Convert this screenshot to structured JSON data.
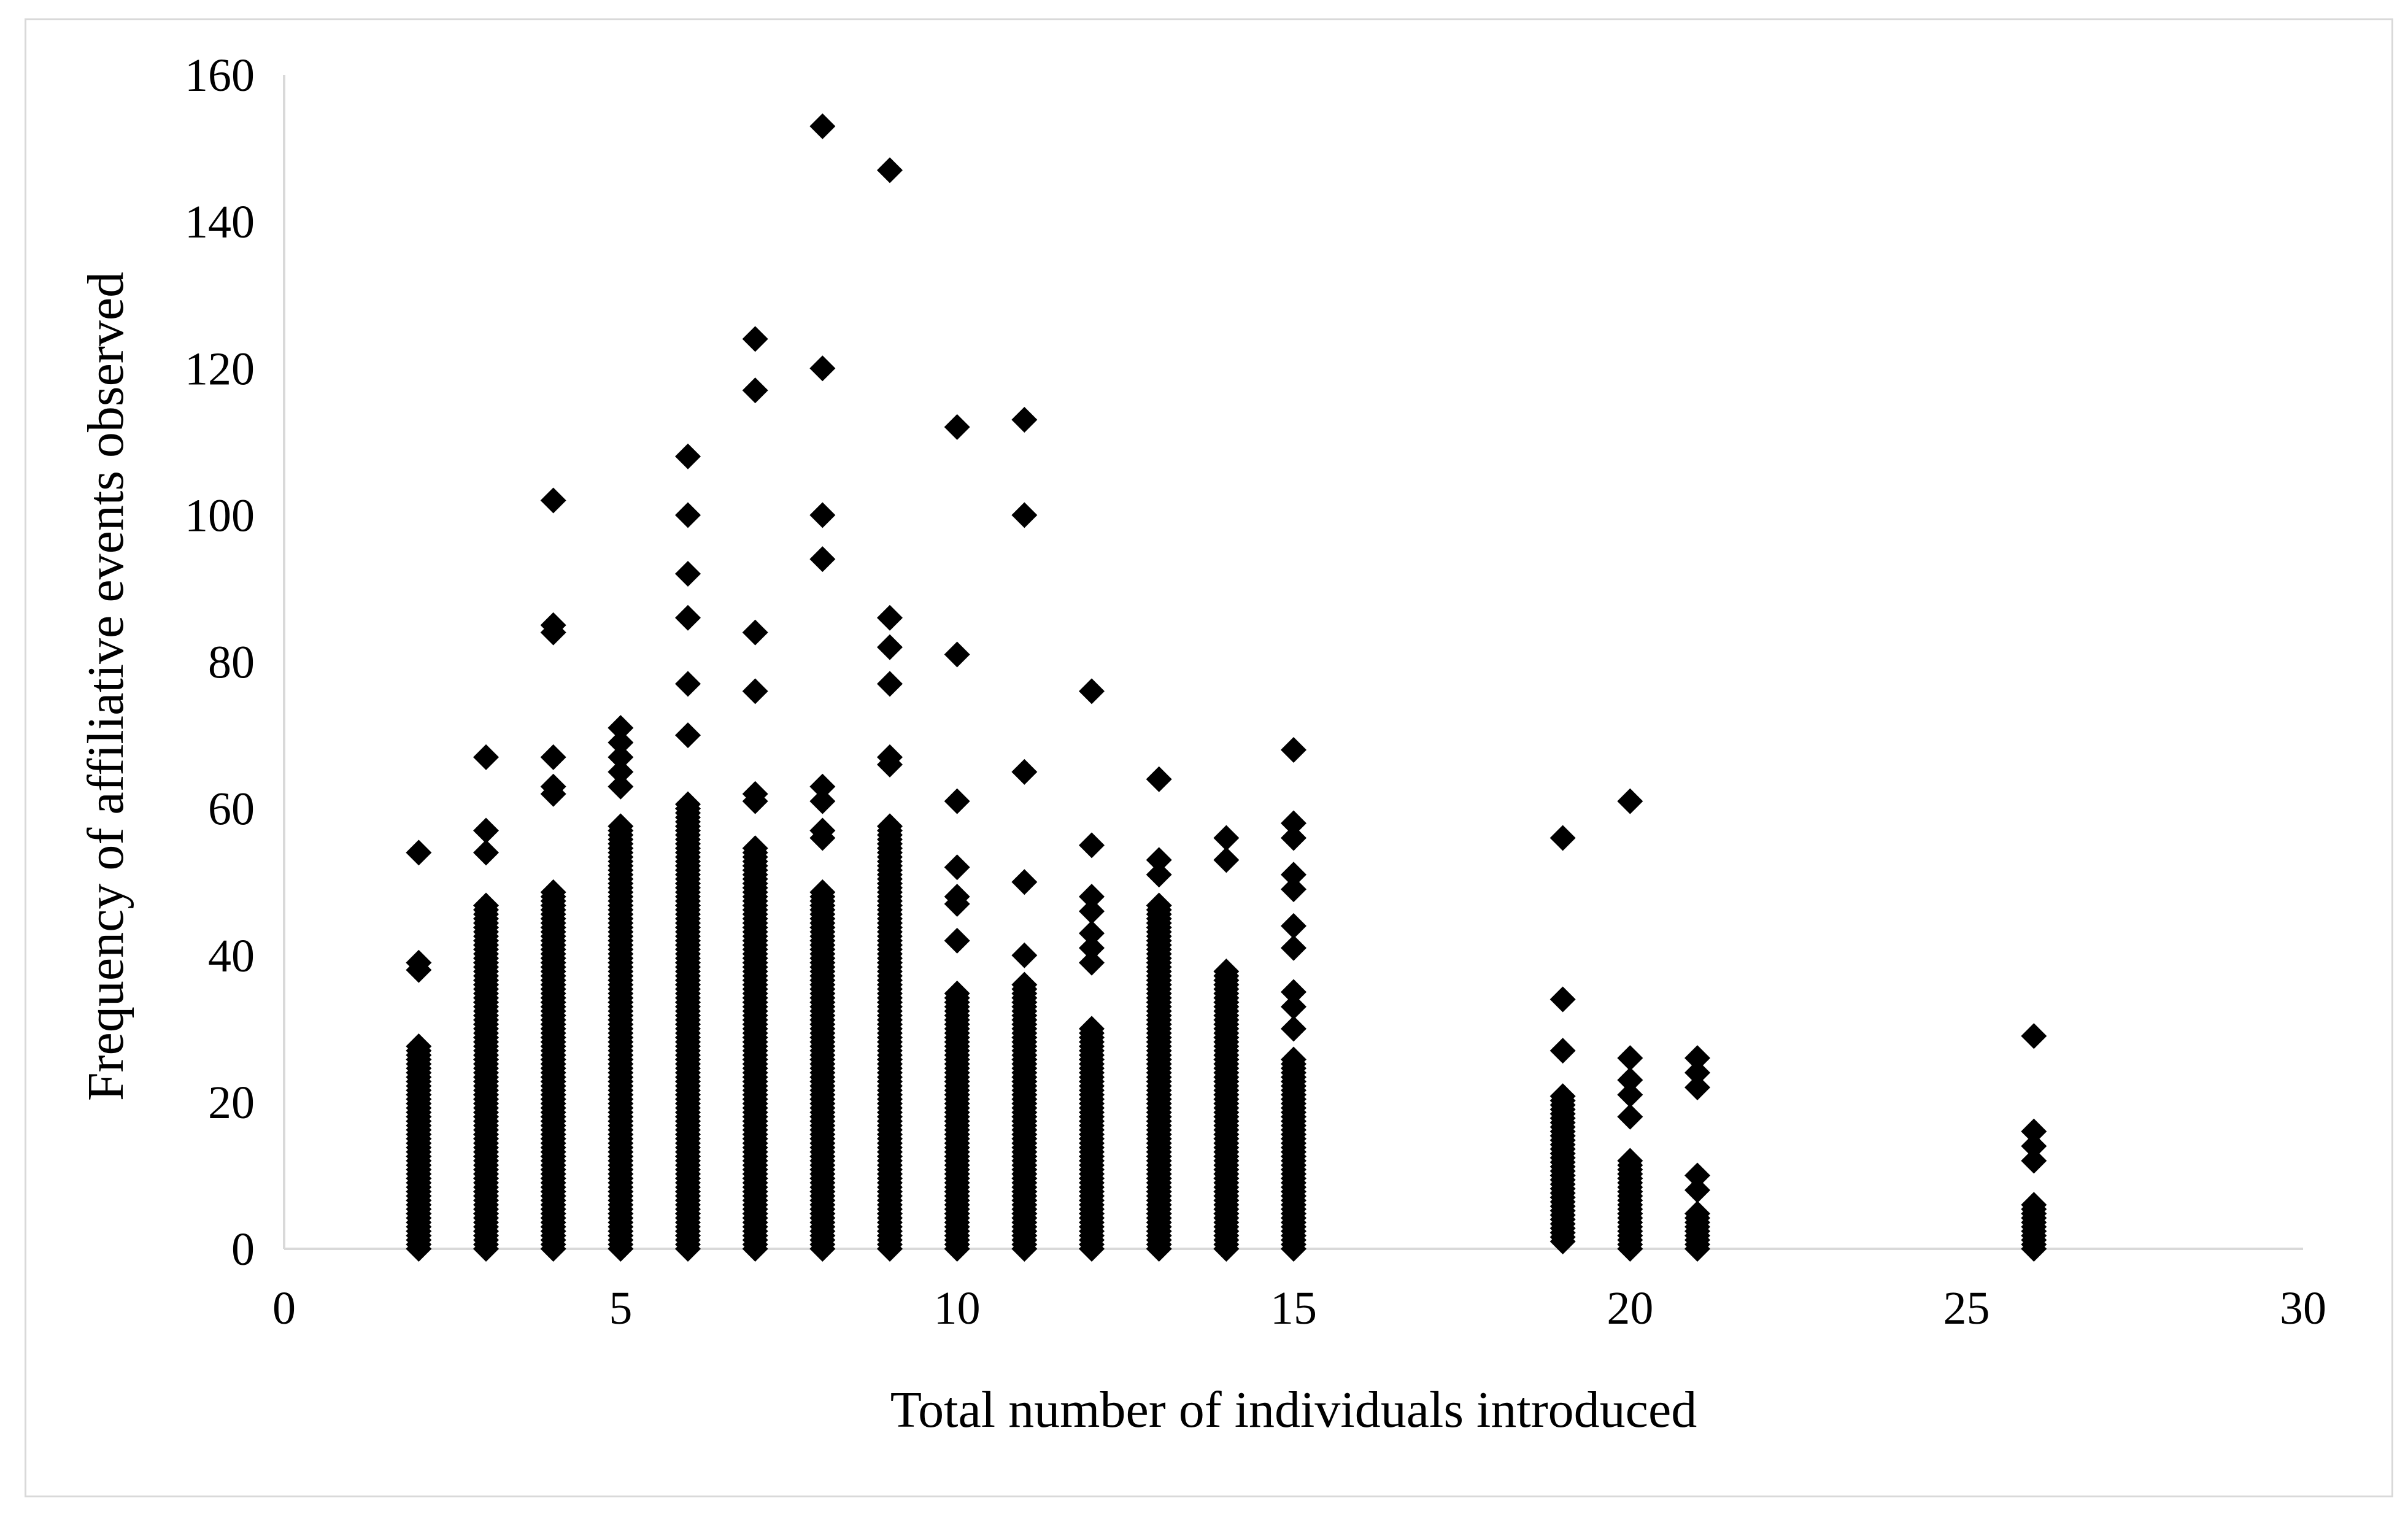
{
  "chart_data": {
    "type": "scatter",
    "title": "",
    "xlabel": "Total number of individuals introduced",
    "ylabel": "Frequency of affiliative events observed",
    "xlim": [
      0,
      30
    ],
    "ylim": [
      0,
      160
    ],
    "x_ticks": [
      "0",
      "5",
      "10",
      "15",
      "20",
      "25",
      "30"
    ],
    "y_ticks": [
      "0",
      "20",
      "40",
      "60",
      "80",
      "100",
      "120",
      "140",
      "160"
    ],
    "grid": false,
    "legend": "none",
    "marker": "diamond",
    "marker_color": "#000000",
    "dense_columns": [
      {
        "x": 2,
        "ymin": 0,
        "ymax": 28
      },
      {
        "x": 3,
        "ymin": 0,
        "ymax": 47
      },
      {
        "x": 4,
        "ymin": 0,
        "ymax": 49
      },
      {
        "x": 5,
        "ymin": 0,
        "ymax": 58
      },
      {
        "x": 6,
        "ymin": 0,
        "ymax": 61
      },
      {
        "x": 7,
        "ymin": 0,
        "ymax": 55
      },
      {
        "x": 8,
        "ymin": 0,
        "ymax": 49
      },
      {
        "x": 9,
        "ymin": 0,
        "ymax": 58
      },
      {
        "x": 10,
        "ymin": 0,
        "ymax": 35
      },
      {
        "x": 11,
        "ymin": 0,
        "ymax": 36
      },
      {
        "x": 12,
        "ymin": 0,
        "ymax": 30
      },
      {
        "x": 13,
        "ymin": 0,
        "ymax": 47
      },
      {
        "x": 14,
        "ymin": 0,
        "ymax": 38
      },
      {
        "x": 15,
        "ymin": 0,
        "ymax": 26
      },
      {
        "x": 19,
        "ymin": 1,
        "ymax": 21
      },
      {
        "x": 20,
        "ymin": 0,
        "ymax": 12
      },
      {
        "x": 21,
        "ymin": 0,
        "ymax": 5
      },
      {
        "x": 26,
        "ymin": 0,
        "ymax": 6
      }
    ],
    "points": [
      {
        "x": 2,
        "y": 54
      },
      {
        "x": 2,
        "y": 39
      },
      {
        "x": 2,
        "y": 38
      },
      {
        "x": 3,
        "y": 67
      },
      {
        "x": 3,
        "y": 57
      },
      {
        "x": 3,
        "y": 54
      },
      {
        "x": 4,
        "y": 102
      },
      {
        "x": 4,
        "y": 85
      },
      {
        "x": 4,
        "y": 84
      },
      {
        "x": 4,
        "y": 67
      },
      {
        "x": 4,
        "y": 63
      },
      {
        "x": 4,
        "y": 62
      },
      {
        "x": 5,
        "y": 71
      },
      {
        "x": 5,
        "y": 69
      },
      {
        "x": 5,
        "y": 67
      },
      {
        "x": 5,
        "y": 65
      },
      {
        "x": 5,
        "y": 63
      },
      {
        "x": 6,
        "y": 108
      },
      {
        "x": 6,
        "y": 100
      },
      {
        "x": 6,
        "y": 92
      },
      {
        "x": 6,
        "y": 86
      },
      {
        "x": 6,
        "y": 77
      },
      {
        "x": 6,
        "y": 70
      },
      {
        "x": 7,
        "y": 124
      },
      {
        "x": 7,
        "y": 117
      },
      {
        "x": 7,
        "y": 84
      },
      {
        "x": 7,
        "y": 76
      },
      {
        "x": 7,
        "y": 62
      },
      {
        "x": 7,
        "y": 61
      },
      {
        "x": 8,
        "y": 153
      },
      {
        "x": 8,
        "y": 120
      },
      {
        "x": 8,
        "y": 100
      },
      {
        "x": 8,
        "y": 94
      },
      {
        "x": 8,
        "y": 63
      },
      {
        "x": 8,
        "y": 61
      },
      {
        "x": 8,
        "y": 57
      },
      {
        "x": 8,
        "y": 56
      },
      {
        "x": 9,
        "y": 147
      },
      {
        "x": 9,
        "y": 86
      },
      {
        "x": 9,
        "y": 82
      },
      {
        "x": 9,
        "y": 77
      },
      {
        "x": 9,
        "y": 67
      },
      {
        "x": 9,
        "y": 66
      },
      {
        "x": 10,
        "y": 112
      },
      {
        "x": 10,
        "y": 81
      },
      {
        "x": 10,
        "y": 61
      },
      {
        "x": 10,
        "y": 52
      },
      {
        "x": 10,
        "y": 48
      },
      {
        "x": 10,
        "y": 47
      },
      {
        "x": 10,
        "y": 42
      },
      {
        "x": 11,
        "y": 113
      },
      {
        "x": 11,
        "y": 100
      },
      {
        "x": 11,
        "y": 65
      },
      {
        "x": 11,
        "y": 50
      },
      {
        "x": 11,
        "y": 40
      },
      {
        "x": 12,
        "y": 76
      },
      {
        "x": 12,
        "y": 55
      },
      {
        "x": 12,
        "y": 48
      },
      {
        "x": 12,
        "y": 46
      },
      {
        "x": 12,
        "y": 43
      },
      {
        "x": 12,
        "y": 41
      },
      {
        "x": 12,
        "y": 39
      },
      {
        "x": 13,
        "y": 64
      },
      {
        "x": 13,
        "y": 53
      },
      {
        "x": 13,
        "y": 51
      },
      {
        "x": 14,
        "y": 56
      },
      {
        "x": 14,
        "y": 53
      },
      {
        "x": 15,
        "y": 68
      },
      {
        "x": 15,
        "y": 58
      },
      {
        "x": 15,
        "y": 56
      },
      {
        "x": 15,
        "y": 51
      },
      {
        "x": 15,
        "y": 49
      },
      {
        "x": 15,
        "y": 44
      },
      {
        "x": 15,
        "y": 41
      },
      {
        "x": 15,
        "y": 35
      },
      {
        "x": 15,
        "y": 33
      },
      {
        "x": 15,
        "y": 30
      },
      {
        "x": 19,
        "y": 56
      },
      {
        "x": 19,
        "y": 34
      },
      {
        "x": 19,
        "y": 27
      },
      {
        "x": 20,
        "y": 61
      },
      {
        "x": 20,
        "y": 26
      },
      {
        "x": 20,
        "y": 23
      },
      {
        "x": 20,
        "y": 21
      },
      {
        "x": 20,
        "y": 18
      },
      {
        "x": 21,
        "y": 26
      },
      {
        "x": 21,
        "y": 24
      },
      {
        "x": 21,
        "y": 22
      },
      {
        "x": 21,
        "y": 10
      },
      {
        "x": 21,
        "y": 8
      },
      {
        "x": 26,
        "y": 29
      },
      {
        "x": 26,
        "y": 16
      },
      {
        "x": 26,
        "y": 14
      },
      {
        "x": 26,
        "y": 12
      }
    ]
  }
}
